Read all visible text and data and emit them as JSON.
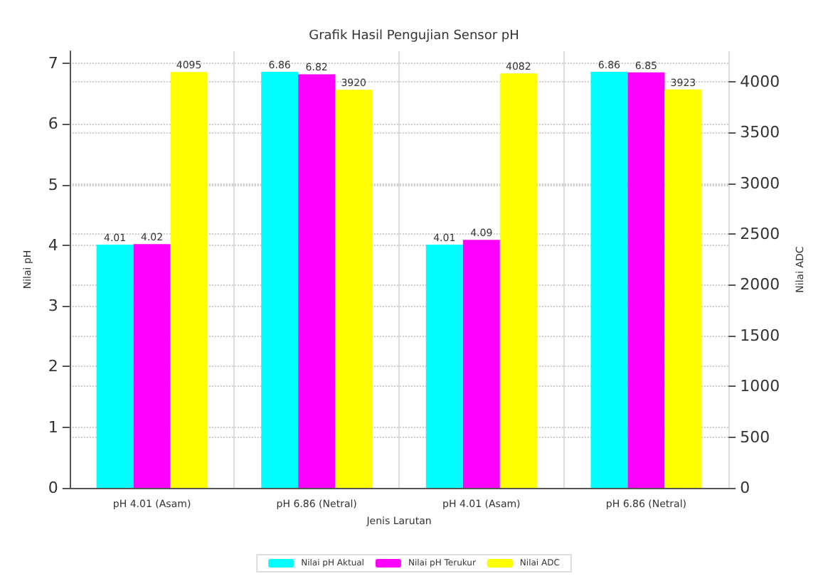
{
  "chart_data": {
    "type": "bar",
    "title": "Grafik Hasil Pengujian Sensor pH",
    "xlabel": "Jenis Larutan",
    "ylabel": "Nilai pH",
    "y2label": "Nilai ADC",
    "categories": [
      "pH 4.01 (Asam)",
      "pH 6.86 (Netral)",
      "pH 4.01 (Asam)",
      "pH 6.86 (Netral)"
    ],
    "series": [
      {
        "name": "Nilai pH Aktual",
        "color": "#00ffff",
        "values": [
          4.01,
          6.86,
          4.01,
          6.86
        ]
      },
      {
        "name": "Nilai pH Terukur",
        "color": "#ff00ff",
        "values": [
          4.02,
          6.82,
          4.09,
          6.85
        ]
      },
      {
        "name": "Nilai ADC",
        "color": "#ffff00",
        "values": [
          4095,
          3920,
          4082,
          3923
        ],
        "axis": "y2"
      }
    ],
    "ylim": [
      0,
      7.2
    ],
    "yticks": [
      0,
      1,
      2,
      3,
      4,
      5,
      6,
      7
    ],
    "y2lim": [
      0,
      4300
    ],
    "y2ticks": [
      0,
      500,
      1000,
      1500,
      2000,
      2500,
      3000,
      3500,
      4000
    ],
    "data_labels": true,
    "grid": true,
    "legend": "bottom"
  }
}
